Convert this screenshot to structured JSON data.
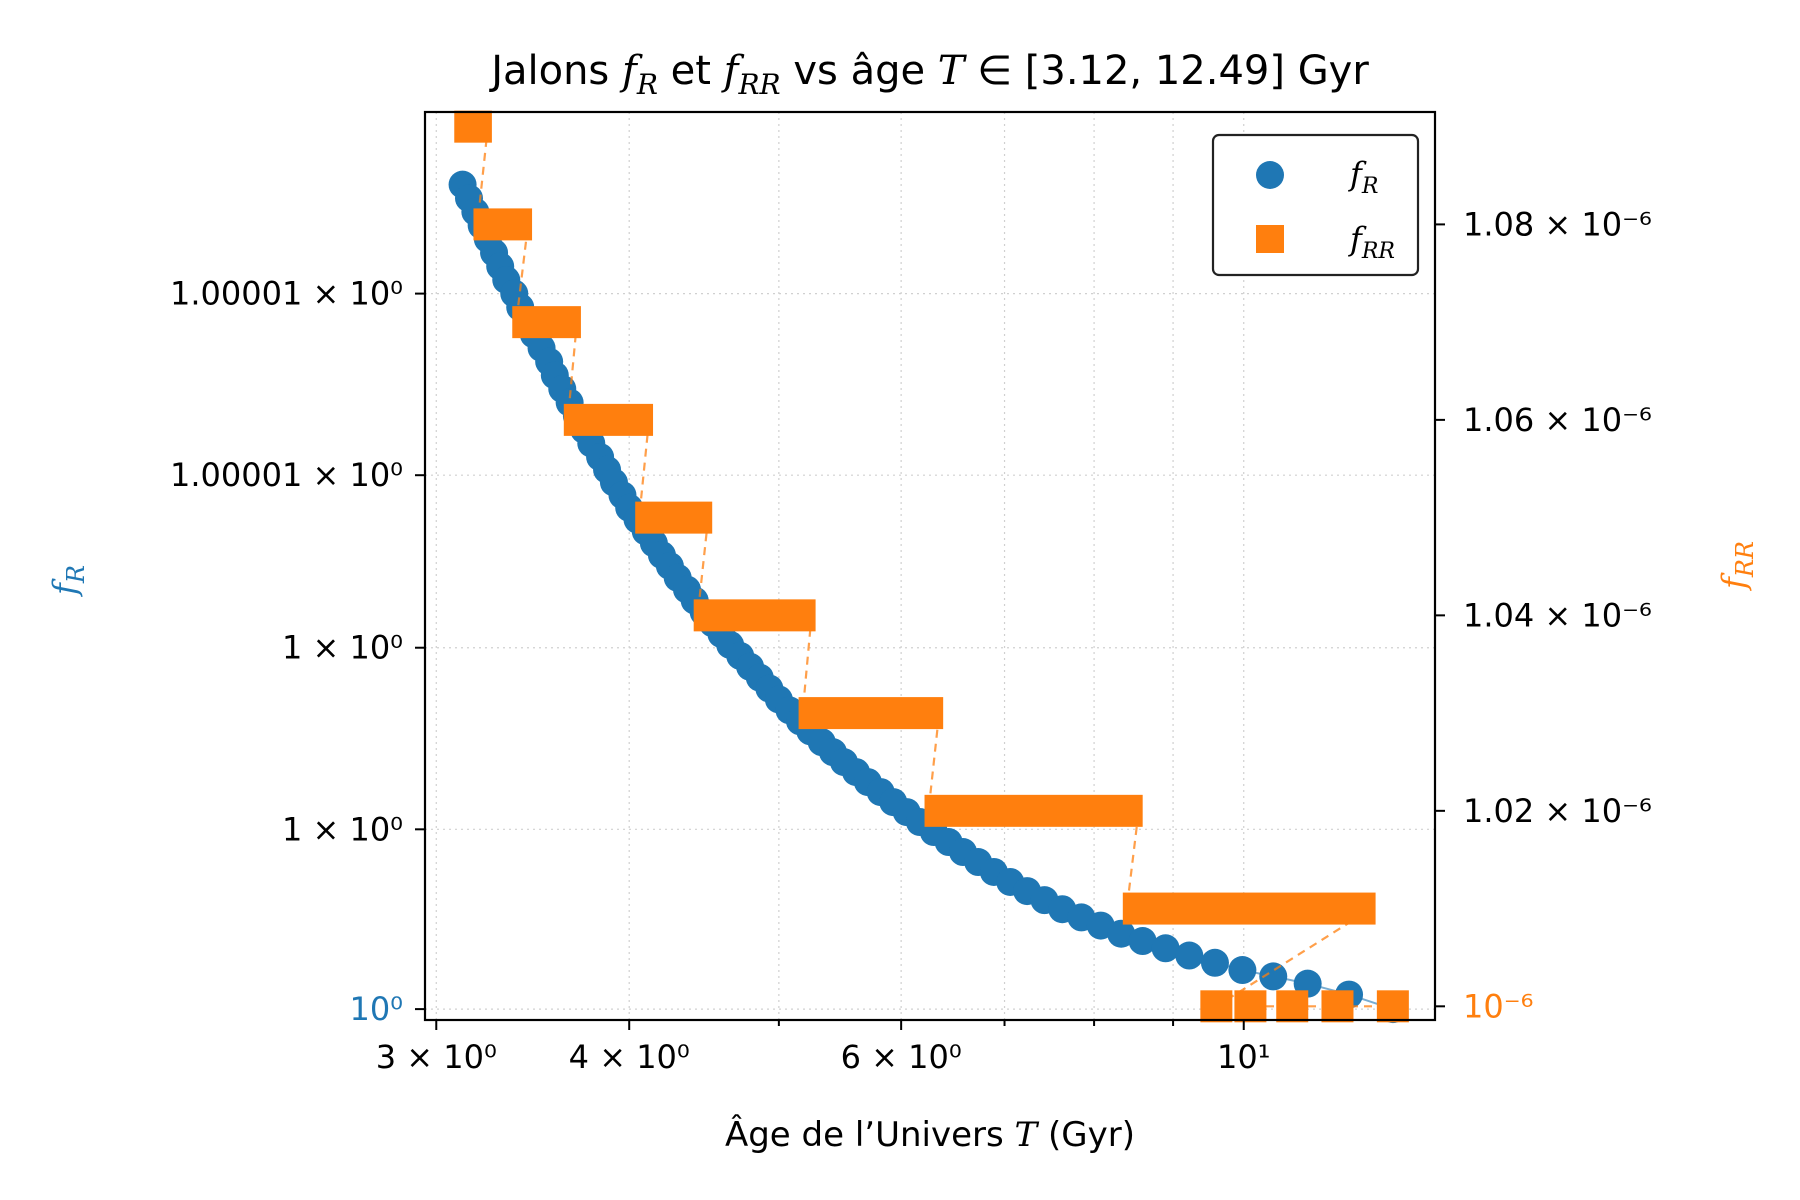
{
  "chart_data": {
    "type": "scatter",
    "title_prefix": "Jalons ",
    "title_fR": "f",
    "title_fR_sub": "R",
    "title_mid": " et ",
    "title_fRR": "f",
    "title_fRR_sub": "RR",
    "title_suffix": " vs âge ",
    "title_T": "T",
    "title_range": " ∈ [3.12, 12.49] Gyr",
    "xlabel_prefix": "Âge de l’Univers ",
    "xlabel_var": "T",
    "xlabel_suffix": " (Gyr)",
    "ylabel_left": "f",
    "ylabel_left_sub": "R",
    "ylabel_right": "f",
    "ylabel_right_sub": "RR",
    "x_scale": "log",
    "xlim": [
      2.95,
      13.3
    ],
    "x_ticks": [
      {
        "value": 3,
        "label": "3 × 10⁰"
      },
      {
        "value": 4,
        "label": "4 × 10⁰"
      },
      {
        "value": 6,
        "label": "6 × 10⁰"
      },
      {
        "value": 10,
        "label": "10¹"
      }
    ],
    "x_minor_ticks": [
      5,
      7,
      8,
      9
    ],
    "y_left_ticks": [
      {
        "frac": 0.012,
        "label": "10⁰",
        "colored": true
      },
      {
        "frac": 0.21,
        "label": "1 × 10⁰"
      },
      {
        "frac": 0.41,
        "label": "1 × 10⁰"
      },
      {
        "frac": 0.6,
        "label": "1.00001 × 10⁰"
      },
      {
        "frac": 0.8,
        "label": "1.00001 × 10⁰"
      }
    ],
    "y_right_ticks": [
      {
        "value": 1e-06,
        "label": "10⁻⁶",
        "colored": true
      },
      {
        "value": 1.02e-06,
        "label": "1.02 × 10⁻⁶"
      },
      {
        "value": 1.04e-06,
        "label": "1.04 × 10⁻⁶"
      },
      {
        "value": 1.06e-06,
        "label": "1.06 × 10⁻⁶"
      },
      {
        "value": 1.08e-06,
        "label": "1.08 × 10⁻⁶"
      }
    ],
    "y_right_lim": [
      9.986e-07,
      1.0915e-06
    ],
    "grid": true,
    "legend_position": "top-right",
    "series": [
      {
        "name": "f",
        "name_sub": "R",
        "marker": "circle",
        "color": "#1f77b4",
        "axis": "left",
        "x": [
          3.12,
          3.15,
          3.18,
          3.21,
          3.24,
          3.27,
          3.3,
          3.33,
          3.37,
          3.4,
          3.44,
          3.47,
          3.51,
          3.55,
          3.58,
          3.62,
          3.66,
          3.7,
          3.74,
          3.78,
          3.83,
          3.87,
          3.91,
          3.96,
          4.0,
          4.05,
          4.1,
          4.15,
          4.2,
          4.25,
          4.3,
          4.36,
          4.41,
          4.47,
          4.53,
          4.59,
          4.65,
          4.72,
          4.79,
          4.86,
          4.93,
          5.0,
          5.08,
          5.16,
          5.24,
          5.33,
          5.42,
          5.51,
          5.61,
          5.71,
          5.82,
          5.93,
          6.05,
          6.17,
          6.3,
          6.44,
          6.58,
          6.73,
          6.89,
          7.06,
          7.24,
          7.43,
          7.63,
          7.85,
          8.08,
          8.33,
          8.6,
          8.9,
          9.22,
          9.58,
          9.98,
          10.45,
          11.0,
          11.7,
          12.49
        ],
        "y_frac": [
          0.92,
          0.905,
          0.89,
          0.875,
          0.86,
          0.845,
          0.83,
          0.815,
          0.8,
          0.785,
          0.77,
          0.755,
          0.74,
          0.725,
          0.71,
          0.695,
          0.68,
          0.665,
          0.65,
          0.635,
          0.62,
          0.606,
          0.592,
          0.578,
          0.564,
          0.551,
          0.538,
          0.525,
          0.512,
          0.5,
          0.487,
          0.474,
          0.462,
          0.449,
          0.437,
          0.425,
          0.413,
          0.401,
          0.389,
          0.377,
          0.365,
          0.353,
          0.341,
          0.329,
          0.318,
          0.306,
          0.295,
          0.284,
          0.273,
          0.262,
          0.251,
          0.24,
          0.229,
          0.218,
          0.207,
          0.196,
          0.185,
          0.174,
          0.163,
          0.152,
          0.142,
          0.132,
          0.122,
          0.113,
          0.104,
          0.095,
          0.087,
          0.079,
          0.071,
          0.063,
          0.055,
          0.048,
          0.04,
          0.028,
          0.012
        ]
      },
      {
        "name": "f",
        "name_sub": "RR",
        "marker": "square",
        "color": "#ff7f0e",
        "axis": "right",
        "steps": [
          {
            "x0": 3.1,
            "x1": 3.24,
            "y": 1.09e-06
          },
          {
            "x0": 3.19,
            "x1": 3.44,
            "y": 1.08e-06
          },
          {
            "x0": 3.38,
            "x1": 3.7,
            "y": 1.07e-06
          },
          {
            "x0": 3.65,
            "x1": 4.12,
            "y": 1.06e-06
          },
          {
            "x0": 4.06,
            "x1": 4.5,
            "y": 1.05e-06
          },
          {
            "x0": 4.43,
            "x1": 5.25,
            "y": 1.04e-06
          },
          {
            "x0": 5.18,
            "x1": 6.35,
            "y": 1.03e-06
          },
          {
            "x0": 6.25,
            "x1": 8.55,
            "y": 1.02e-06
          },
          {
            "x0": 8.4,
            "x1": 12.1,
            "y": 1.01e-06
          }
        ],
        "points": [
          {
            "x": 9.6,
            "y": 1e-06
          },
          {
            "x": 10.1,
            "y": 1e-06
          },
          {
            "x": 10.75,
            "y": 1e-06
          },
          {
            "x": 11.5,
            "y": 1e-06
          },
          {
            "x": 12.49,
            "y": 1e-06
          }
        ]
      }
    ]
  }
}
